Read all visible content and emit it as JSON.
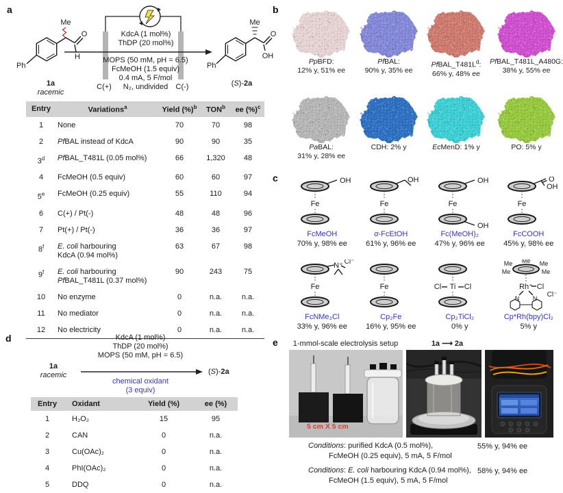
{
  "colors": {
    "accent_blue": "#3333cc",
    "caption_red": "#e23b2e",
    "table_header_grey": "#d2d2d2",
    "electrode_grey": "#b4b4b4",
    "bolt_yellow": "#f3e53a"
  },
  "panel_a": {
    "label": "a",
    "scheme": {
      "substrate_id": "1a",
      "substrate_tag": "racemic",
      "substrate_atoms": {
        "ph": "Ph",
        "me": "Me",
        "o": "O",
        "h": "H"
      },
      "product_id": "(<i>S</i>)-<b>2a</b>",
      "product_atoms": {
        "ph": "Ph",
        "me": "Me",
        "o": "O",
        "oh": "OH"
      },
      "conditions_above": [
        "KdcA (1 mol%)",
        "ThDP (20 mol%)"
      ],
      "conditions_below": [
        "MOPS (50 mM, pH = 6.5)",
        "FcMeOH (1.5 equiv)",
        "0.4 mA, 5 F/mol",
        "N₂, undivided"
      ],
      "anode": "C(+)",
      "cathode": "C(-)"
    },
    "table": {
      "headers": [
        "Entry",
        "Variations<sup>a</sup>",
        "Yield (%)<sup>b</sup>",
        "TON<sup>b</sup>",
        "ee (%)<sup>c</sup>"
      ],
      "rows": [
        [
          "1",
          "None",
          "70",
          "70",
          "98"
        ],
        [
          "2",
          "<i>Pf</i>BAL instead of KdcA",
          "90",
          "90",
          "35"
        ],
        [
          "3<sup>d</sup>",
          "<i>Pf</i>BAL_T481L (0.05 mol%)",
          "66",
          "1,320",
          "48"
        ],
        [
          "4",
          "FcMeOH (0.5 equiv)",
          "60",
          "60",
          "97"
        ],
        [
          "5<sup>e</sup>",
          "FcMeOH (0.25 equiv)",
          "55",
          "110",
          "94"
        ],
        [
          "6",
          "C(+) / Pt(-)",
          "48",
          "48",
          "96"
        ],
        [
          "7",
          "Pt(+) / Pt(-)",
          "36",
          "36",
          "97"
        ],
        [
          "8<sup>f</sup>",
          "<i>E. coli</i> harbouring<br>KdcA (0.94 mol%)",
          "63",
          "67",
          "98"
        ],
        [
          "9<sup>f</sup>",
          "<i>E. coli</i> harbouring<br><i>Pf</i>BAL_T481L (0.37 mol%)",
          "90",
          "243",
          "75"
        ],
        [
          "10",
          "No enzyme",
          "0",
          "n.a.",
          "n.a."
        ],
        [
          "11",
          "No mediator",
          "0",
          "n.a.",
          "n.a."
        ],
        [
          "12",
          "No electricity",
          "0",
          "n.a.",
          "n.a."
        ]
      ]
    }
  },
  "panel_b": {
    "label": "b",
    "items": [
      {
        "name": "<i>Pp</i>BFD:",
        "result": "12% y, 51% ee",
        "color": "#e6d3d3"
      },
      {
        "name": "<i>Pf</i>BAL:",
        "result": "90% y, 35% ee",
        "color": "#8488d8"
      },
      {
        "name": "<i>Pf</i>BAL_T481L<sup>d</sup>:",
        "result": "66% y, 48% ee",
        "color": "#cf7a6e"
      },
      {
        "name": "<i>Pf</i>BAL_T481L_A480G:",
        "result": "38% y, 55% ee",
        "color": "#d050d0"
      },
      {
        "name": "<i>Pa</i>BAL:",
        "result": "31% y, 28% ee",
        "color": "#b6b6b6"
      },
      {
        "name": "CDH: 2% y",
        "result": "",
        "color": "#2e6fc2"
      },
      {
        "name": "<i>Ec</i>MenD: 1% y",
        "result": "",
        "color": "#3ecfd6"
      },
      {
        "name": "PO: 5% y",
        "result": "",
        "color": "#96c93e"
      }
    ]
  },
  "panel_c": {
    "label": "c",
    "items": [
      {
        "name": "FcMeOH",
        "result": "70% y, 98% ee",
        "metal": "Fe",
        "sub": "OH"
      },
      {
        "name": "<i>α</i>-FcEtOH",
        "result": "61% y, 96% ee",
        "metal": "Fe",
        "sub": "OH"
      },
      {
        "name": "Fc(MeOH)₂",
        "result": "47% y, 96% ee",
        "metal": "Fe",
        "sub": "OH",
        "sub2": "OH"
      },
      {
        "name": "FcCOOH",
        "result": "45% y, 98% ee",
        "metal": "Fe",
        "sub": "O",
        "sub2": "OH"
      },
      {
        "name": "FcNMe₃Cl",
        "result": "33% y, 96% ee",
        "metal": "Fe",
        "sub": "N⁺",
        "counter": "Cl⁻"
      },
      {
        "name": "Cp₂Fe",
        "result": "16% y, 95% ee",
        "metal": "Fe"
      },
      {
        "name": "Cp₂TiCl₂",
        "result": "0% y",
        "metal": "Ti",
        "cl1": "Cl",
        "cl2": "Cl"
      },
      {
        "name": "Cp*Rh(bpy)Cl₂",
        "result": "5% y",
        "metal": "Rh⁺",
        "cl1": "Cl",
        "counter": "Cl⁻",
        "me": "Me",
        "n": "N"
      }
    ]
  },
  "panel_d": {
    "label": "d",
    "scheme": {
      "substrate_id": "1a",
      "substrate_tag": "racemic",
      "conditions_above": [
        "KdcA (1 mol%)",
        "ThDP (20 mol%)",
        "MOPS (50 mM, pH = 6.5)"
      ],
      "conditions_below": [
        "chemical oxidant",
        "(3 equiv)"
      ],
      "product_id": "(<i>S</i>)-<b>2a</b>"
    },
    "table": {
      "headers": [
        "Entry",
        "Oxidant",
        "Yield (%)",
        "ee (%)"
      ],
      "rows": [
        [
          "1",
          "H₂O₂",
          "15",
          "95"
        ],
        [
          "2",
          "CAN",
          "0",
          "n.a."
        ],
        [
          "3",
          "Cu(OAc)₂",
          "0",
          "n.a."
        ],
        [
          "4",
          "PhI(OAc)₂",
          "0",
          "n.a."
        ],
        [
          "5",
          "DDQ",
          "0",
          "n.a."
        ]
      ]
    }
  },
  "panel_e": {
    "label": "e",
    "photo1_title": "1-mmol-scale electrolysis setup",
    "reaction_title": "1a ⟶ 2a",
    "photo1_caption": "5 cm X 5 cm",
    "conditions": [
      {
        "line1": "<i>Conditions</i>: purified KdcA (0.5 mol%),",
        "line2": "FcMeOH (0.25 equiv), 5 mA, 5 F/mol",
        "result": "55% y, 94% ee"
      },
      {
        "line1": "<i>Conditions</i>: <i>E. coli</i> harbouring KdcA (0.94 mol%),",
        "line2": "FcMeOH (1.5 equiv), 5 mA, 5 F/mol",
        "result": "58% y, 94% ee"
      }
    ]
  }
}
